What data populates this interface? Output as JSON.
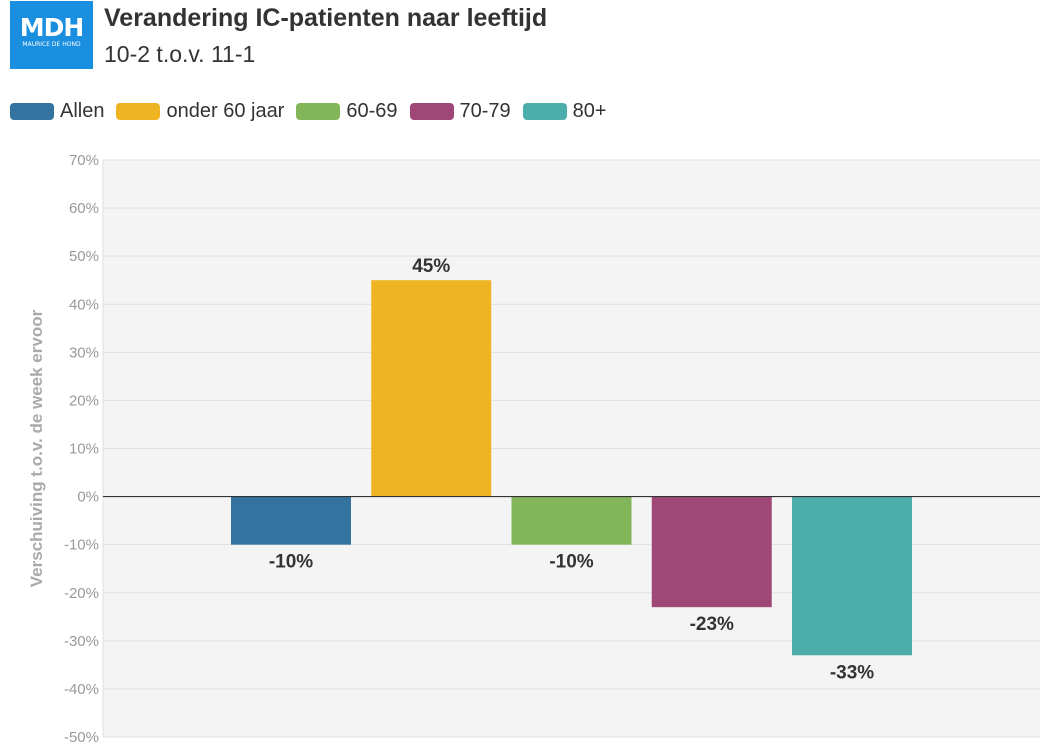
{
  "logo": {
    "mark": "MDH",
    "sub": "MAURICE DE HOND"
  },
  "header": {
    "title": "Verandering IC-patienten naar leeftijd",
    "subtitle": "10-2 t.o.v. 11-1"
  },
  "chart_data": {
    "type": "bar",
    "title": "Verandering IC-patienten naar leeftijd",
    "subtitle": "10-2 t.o.v. 11-1",
    "xlabel": "",
    "ylabel": "Verschuiving t.o.v. de week ervoor",
    "ylim": [
      -50,
      70
    ],
    "yticks": [
      70,
      60,
      50,
      40,
      30,
      20,
      10,
      0,
      -10,
      -20,
      -30,
      -40,
      -50
    ],
    "ytick_labels": [
      "70%",
      "60%",
      "50%",
      "40%",
      "30%",
      "20%",
      "10%",
      "0%",
      "-10%",
      "-20%",
      "-30%",
      "-40%",
      "-50%"
    ],
    "grid": true,
    "legend_position": "top-left",
    "series": [
      {
        "name": "Allen",
        "value": -10,
        "label": "-10%",
        "color": "#33739f"
      },
      {
        "name": "onder 60 jaar",
        "value": 45,
        "label": "45%",
        "color": "#eeb422"
      },
      {
        "name": "60-69",
        "value": -10,
        "label": "-10%",
        "color": "#83b659"
      },
      {
        "name": "70-79",
        "value": -23,
        "label": "-23%",
        "color": "#9f4878"
      },
      {
        "name": "80+",
        "value": -33,
        "label": "-33%",
        "color": "#4dadab"
      }
    ]
  }
}
